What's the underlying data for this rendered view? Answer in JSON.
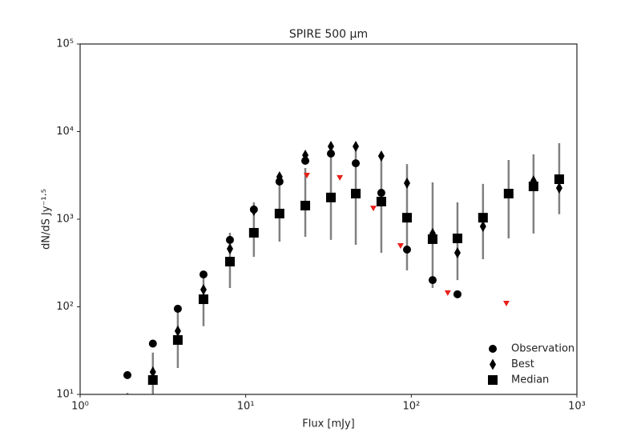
{
  "chart_data": {
    "type": "scatter",
    "title": "SPIRE 500 μm",
    "xlabel": "Flux [mJy]",
    "ylabel": "dN/dS Jy⁻¹·⁵",
    "xscale": "log",
    "yscale": "log",
    "xlim": [
      1,
      1000
    ],
    "ylim": [
      10,
      100000
    ],
    "xticks": [
      {
        "value": 1,
        "label": "10⁰"
      },
      {
        "value": 10,
        "label": "10¹"
      },
      {
        "value": 100,
        "label": "10²"
      },
      {
        "value": 1000,
        "label": "10³"
      }
    ],
    "yticks": [
      {
        "value": 10,
        "label": "10¹"
      },
      {
        "value": 100,
        "label": "10²"
      },
      {
        "value": 1000,
        "label": "10³"
      },
      {
        "value": 10000,
        "label": "10⁴"
      },
      {
        "value": 100000,
        "label": "10⁵"
      }
    ],
    "legend": "lower right",
    "x": [
      1.93,
      2.75,
      3.89,
      5.56,
      8.03,
      11.2,
      16.0,
      22.9,
      32.7,
      46.2,
      65.9,
      94.2,
      134.5,
      190,
      271,
      387,
      547,
      782
    ],
    "series": [
      {
        "name": "Observation",
        "color": "#000000",
        "marker": "circle",
        "values": [
          16.6,
          38,
          95,
          234,
          580,
          1290,
          2690,
          4640,
          5610,
          4350,
          2000,
          450,
          202,
          139,
          null,
          null,
          null,
          null
        ]
      },
      {
        "name": "Best",
        "color": "#000000",
        "marker": "diamond",
        "values": [
          null,
          18,
          53,
          157,
          459,
          1260,
          3050,
          5380,
          6780,
          6780,
          5260,
          2580,
          686,
          413,
          828,
          null,
          2740,
          2270
        ]
      },
      {
        "name": "Median",
        "color": "#000000",
        "marker": "square",
        "error_color": "#808080",
        "values": [
          null,
          14.6,
          41.8,
          122,
          328,
          700,
          1160,
          1430,
          1770,
          1960,
          1590,
          1040,
          592,
          604,
          1040,
          1960,
          2370,
          2860
        ],
        "low": [
          5,
          5,
          20,
          60,
          164,
          372,
          555,
          630,
          580,
          510,
          413,
          260,
          164,
          202,
          349,
          604,
          686,
          1140
        ],
        "high": [
          10.4,
          30,
          87,
          250,
          700,
          1560,
          3180,
          3840,
          6230,
          6780,
          5380,
          4260,
          2630,
          1560,
          2530,
          4740,
          5500,
          7380
        ]
      },
      {
        "color": "#e8201a",
        "marker": "triangle",
        "x": [
          23.4,
          37.0,
          59.0,
          86.1,
          166,
          375
        ],
        "values": [
          3180,
          2990,
          1340,
          500,
          145,
          110
        ]
      }
    ]
  }
}
